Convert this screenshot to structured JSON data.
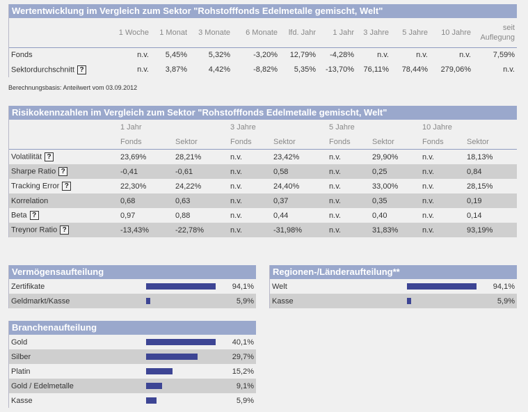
{
  "performance": {
    "title": "Wertentwicklung im Vergleich zum Sektor \"Rohstofffonds Edelmetalle gemischt, Welt\"",
    "columns": [
      "1 Woche",
      "1 Monat",
      "3 Monate",
      "6 Monate",
      "lfd. Jahr",
      "1 Jahr",
      "3 Jahre",
      "5 Jahre",
      "10 Jahre"
    ],
    "last_column": [
      "seit",
      "Auflegung"
    ],
    "rows": [
      {
        "label": "Fonds",
        "help": false,
        "values": [
          "n.v.",
          "5,45%",
          "5,32%",
          "-3,20%",
          "12,79%",
          "-4,28%",
          "n.v.",
          "n.v.",
          "n.v.",
          "7,59%"
        ]
      },
      {
        "label": "Sektordurchschnitt",
        "help": true,
        "values": [
          "n.v.",
          "3,87%",
          "4,42%",
          "-8,82%",
          "5,35%",
          "-13,70%",
          "76,11%",
          "78,44%",
          "279,06%",
          "n.v."
        ]
      }
    ],
    "basis_note": "Berechnungsbasis: Anteilwert vom 03.09.2012"
  },
  "risk": {
    "title": "Risikokennzahlen im Vergleich zum Sektor \"Rohstofffonds Edelmetalle gemischt, Welt\"",
    "periods": [
      "1 Jahr",
      "3 Jahre",
      "5 Jahre",
      "10 Jahre"
    ],
    "subcols": [
      "Fonds",
      "Sektor"
    ],
    "rows": [
      {
        "label": "Volatilität",
        "help": true,
        "values": [
          "23,69%",
          "28,21%",
          "n.v.",
          "23,42%",
          "n.v.",
          "29,90%",
          "n.v.",
          "18,13%"
        ]
      },
      {
        "label": "Sharpe Ratio",
        "help": true,
        "values": [
          "-0,41",
          "-0,61",
          "n.v.",
          "0,58",
          "n.v.",
          "0,25",
          "n.v.",
          "0,84"
        ]
      },
      {
        "label": "Tracking Error",
        "help": true,
        "values": [
          "22,30%",
          "24,22%",
          "n.v.",
          "24,40%",
          "n.v.",
          "33,00%",
          "n.v.",
          "28,15%"
        ]
      },
      {
        "label": "Korrelation",
        "help": false,
        "values": [
          "0,68",
          "0,63",
          "n.v.",
          "0,37",
          "n.v.",
          "0,35",
          "n.v.",
          "0,19"
        ]
      },
      {
        "label": "Beta",
        "help": true,
        "values": [
          "0,97",
          "0,88",
          "n.v.",
          "0,44",
          "n.v.",
          "0,40",
          "n.v.",
          "0,14"
        ]
      },
      {
        "label": "Treynor Ratio",
        "help": true,
        "values": [
          "-13,43%",
          "-22,78%",
          "n.v.",
          "-31,98%",
          "n.v.",
          "31,83%",
          "n.v.",
          "93,19%"
        ]
      }
    ]
  },
  "help_icon_label": "?",
  "allocations": {
    "asset": {
      "title": "Vermögensaufteilung",
      "items": [
        {
          "label": "Zertifikate",
          "value": "94,1%",
          "pct": 94.1
        },
        {
          "label": "Geldmarkt/Kasse",
          "value": "5,9%",
          "pct": 5.9
        }
      ]
    },
    "region": {
      "title": "Regionen-/Länderaufteilung**",
      "items": [
        {
          "label": "Welt",
          "value": "94,1%",
          "pct": 94.1
        },
        {
          "label": "Kasse",
          "value": "5,9%",
          "pct": 5.9
        }
      ]
    },
    "sector": {
      "title": "Branchenaufteilung",
      "items": [
        {
          "label": "Gold",
          "value": "40,1%",
          "pct": 40.1
        },
        {
          "label": "Silber",
          "value": "29,7%",
          "pct": 29.7
        },
        {
          "label": "Platin",
          "value": "15,2%",
          "pct": 15.2
        },
        {
          "label": "Gold / Edelmetalle",
          "value": "9,1%",
          "pct": 9.1
        },
        {
          "label": "Kasse",
          "value": "5,9%",
          "pct": 5.9
        }
      ]
    }
  },
  "colors": {
    "header_bg": "#9aa8cc",
    "bar": "#3d4594",
    "alt_row": "#cfcfcf"
  }
}
